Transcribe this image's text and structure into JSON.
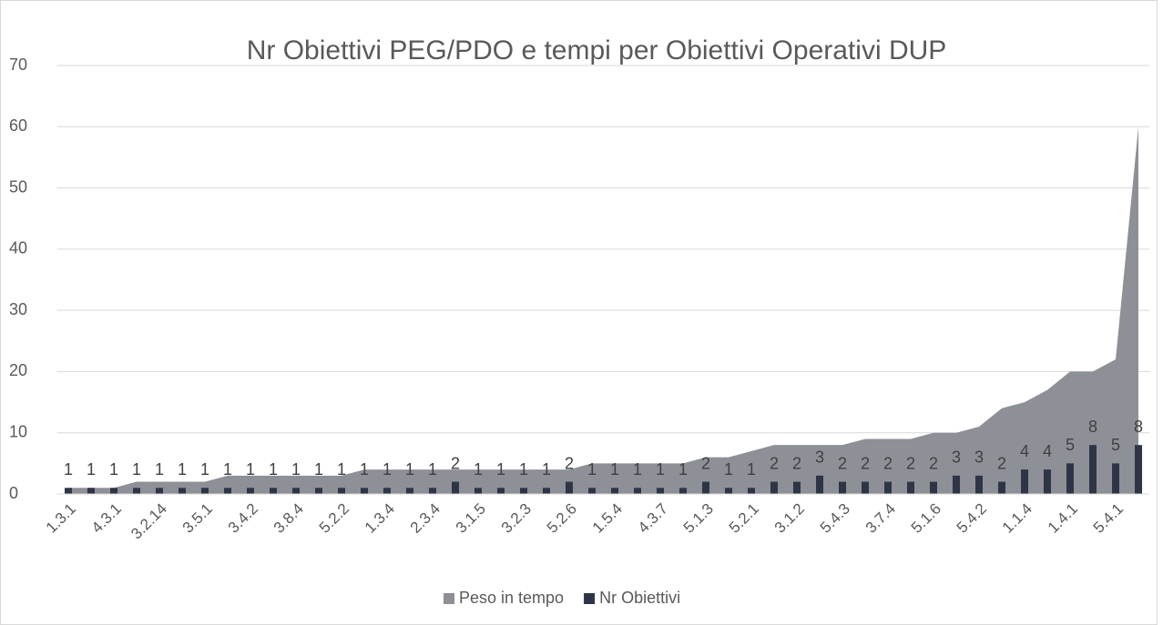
{
  "chart_data": {
    "type": "area_bar",
    "title": "Nr Obiettivi PEG/PDO e tempi per Obiettivi Operativi DUP",
    "categories": [
      "1.3.1",
      null,
      "4.3.1",
      null,
      "3.2.14",
      null,
      "3.5.1",
      null,
      "3.4.2",
      null,
      "3.8.4",
      null,
      "5.2.2",
      null,
      "1.3.4",
      null,
      "2.3.4",
      null,
      "3.1.5",
      null,
      "3.2.3",
      null,
      "5.2.6",
      null,
      "1.5.4",
      null,
      "4.3.7",
      null,
      "5.1.3",
      null,
      "5.2.1",
      null,
      "3.1.2",
      null,
      "5.4.3",
      null,
      "3.7.4",
      null,
      "5.1.6",
      null,
      "5.4.2",
      null,
      "1.1.4",
      null,
      "1.4.1",
      null,
      "5.4.1",
      null
    ],
    "series": [
      {
        "name": "Peso in tempo",
        "color": "#8e9097",
        "values": [
          1,
          1,
          1,
          2,
          2,
          2,
          2,
          3,
          3,
          3,
          3,
          3,
          3,
          4,
          4,
          4,
          4,
          4,
          4,
          4,
          4,
          4,
          4,
          5,
          5,
          5,
          5,
          5,
          6,
          6,
          7,
          8,
          8,
          8,
          8,
          9,
          9,
          9,
          10,
          10,
          11,
          14,
          15,
          17,
          20,
          20,
          22,
          60
        ]
      },
      {
        "name": "Nr Obiettivi",
        "color": "#2e3546",
        "values": [
          1,
          1,
          1,
          1,
          1,
          1,
          1,
          1,
          1,
          1,
          1,
          1,
          1,
          1,
          1,
          1,
          1,
          2,
          1,
          1,
          1,
          1,
          2,
          1,
          1,
          1,
          1,
          1,
          2,
          1,
          1,
          2,
          2,
          3,
          2,
          2,
          2,
          2,
          2,
          3,
          3,
          2,
          4,
          4,
          5,
          8,
          5,
          8
        ]
      }
    ],
    "ylim": [
      0,
      70
    ],
    "yticks": [
      0,
      10,
      20,
      30,
      40,
      50,
      60,
      70
    ],
    "grid": true,
    "legend": "bottom"
  }
}
